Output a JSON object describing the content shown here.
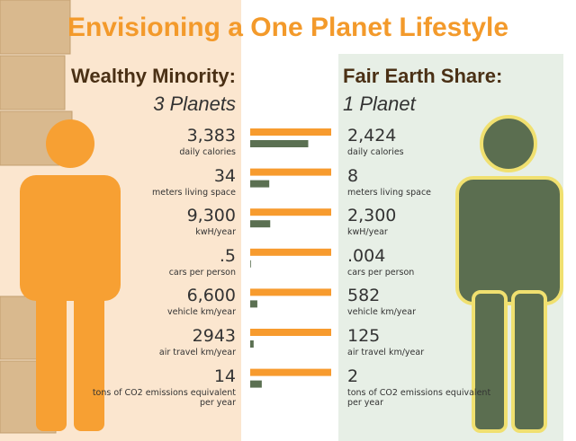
{
  "chart_data": {
    "type": "bar",
    "title": "Envisioning a One Planet Lifestyle",
    "categories": [
      "daily calories",
      "meters living space",
      "kwH/year",
      "cars per person",
      "vehicle km/year",
      "air travel km/year",
      "tons of CO2 emissions equivalent per year"
    ],
    "series": [
      {
        "name": "Wealthy Minority:",
        "label": "3 Planets",
        "color": "#f79b2e",
        "values": [
          3383,
          34,
          9300,
          0.5,
          6600,
          2943,
          14
        ],
        "value_labels": [
          "3,383",
          "34",
          "9,300",
          ".5",
          "6,600",
          "2943",
          "14"
        ]
      },
      {
        "name": "Fair Earth Share:",
        "label": "1 Planet",
        "color": "#5b7052",
        "values": [
          2424,
          8,
          2300,
          0.004,
          582,
          125,
          2
        ],
        "value_labels": [
          "2,424",
          "8",
          "2,300",
          ".004",
          "582",
          "125",
          "2"
        ]
      }
    ]
  }
}
